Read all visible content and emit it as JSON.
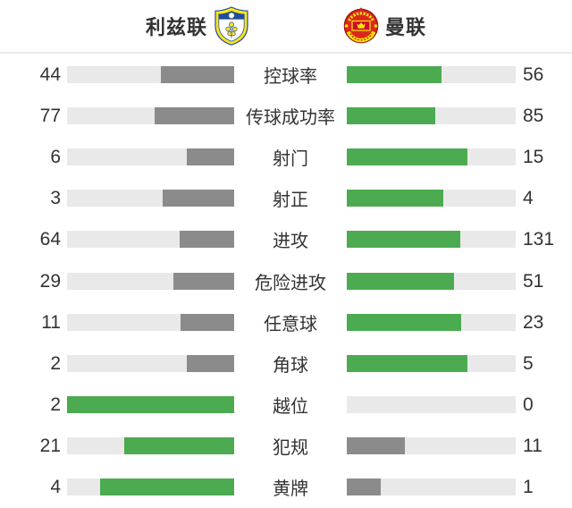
{
  "header": {
    "home": {
      "name": "利兹联",
      "badge_icon": "leeds-united-badge"
    },
    "away": {
      "name": "曼联",
      "badge_icon": "manchester-united-badge"
    }
  },
  "colors": {
    "leading_bar": "#4cab50",
    "trailing_bar": "#8b8b8b",
    "bar_track": "#e9e9e9",
    "text": "#333333",
    "divider": "#e9e9e9",
    "leeds_yellow": "#f8e71c",
    "leeds_blue": "#1d4f9e",
    "manutd_red": "#da291c",
    "manutd_yellow": "#ffe500"
  },
  "chart_data": {
    "type": "bar",
    "layout": "mirrored-horizontal-comparison",
    "title": "利兹联 vs 曼联",
    "categories": [
      "控球率",
      "传球成功率",
      "射门",
      "射正",
      "进攻",
      "危险进攻",
      "任意球",
      "角球",
      "越位",
      "犯规",
      "黄牌"
    ],
    "series": [
      {
        "name": "利兹联",
        "values": [
          44,
          77,
          6,
          3,
          64,
          29,
          11,
          2,
          2,
          21,
          4
        ]
      },
      {
        "name": "曼联",
        "values": [
          56,
          85,
          15,
          4,
          131,
          51,
          23,
          5,
          0,
          11,
          1
        ]
      }
    ],
    "normalization": "bar width = value / (home value + away value) of its row",
    "color_rule": "higher value of the row is green, lower value is gray",
    "grid": false,
    "legend_position": "header"
  }
}
